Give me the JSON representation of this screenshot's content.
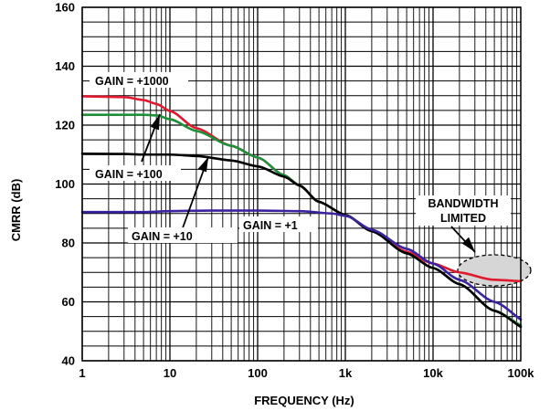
{
  "chart_data": {
    "type": "line",
    "xlabel": "FREQUENCY (Hz)",
    "ylabel": "CMRR (dB)",
    "xscale": "log",
    "xlim": [
      1,
      100000
    ],
    "ylim": [
      40,
      160
    ],
    "grid": true,
    "x_ticks": [
      {
        "value": 1,
        "label": "1"
      },
      {
        "value": 10,
        "label": "10"
      },
      {
        "value": 100,
        "label": "100"
      },
      {
        "value": 1000,
        "label": "1k"
      },
      {
        "value": 10000,
        "label": "10k"
      },
      {
        "value": 100000,
        "label": "100k"
      }
    ],
    "y_ticks": [
      {
        "value": 40,
        "label": "40"
      },
      {
        "value": 60,
        "label": "60"
      },
      {
        "value": 80,
        "label": "80"
      },
      {
        "value": 100,
        "label": "100"
      },
      {
        "value": 120,
        "label": "120"
      },
      {
        "value": 140,
        "label": "140"
      },
      {
        "value": 160,
        "label": "160"
      }
    ],
    "series": [
      {
        "color": "#e0192f",
        "points": [
          [
            1,
            129.8
          ],
          [
            3,
            129.5
          ],
          [
            5,
            128.5
          ],
          [
            7,
            127.2
          ],
          [
            10,
            124.8
          ],
          [
            20,
            119
          ],
          [
            50,
            113
          ],
          [
            100,
            109
          ],
          [
            200,
            103
          ],
          [
            300,
            99.5
          ],
          [
            500,
            94
          ],
          [
            1000,
            89.5
          ],
          [
            2000,
            84
          ],
          [
            5000,
            77
          ],
          [
            10000,
            73
          ],
          [
            20000,
            70
          ],
          [
            50000,
            67.5
          ],
          [
            100000,
            67
          ]
        ]
      },
      {
        "color": "#1f8f3a",
        "points": [
          [
            1,
            123.5
          ],
          [
            3,
            123.5
          ],
          [
            5,
            123.5
          ],
          [
            7,
            123.3
          ],
          [
            10,
            122
          ],
          [
            20,
            118
          ],
          [
            50,
            113
          ],
          [
            100,
            109
          ],
          [
            200,
            103
          ],
          [
            300,
            99.5
          ],
          [
            500,
            94
          ],
          [
            1000,
            89.5
          ],
          [
            2000,
            84
          ],
          [
            5000,
            76.5
          ],
          [
            10000,
            71.5
          ],
          [
            20000,
            66
          ],
          [
            50000,
            57
          ],
          [
            100000,
            52
          ]
        ]
      },
      {
        "color": "#000000",
        "points": [
          [
            1,
            110.3
          ],
          [
            3,
            110.2
          ],
          [
            5,
            110
          ],
          [
            10,
            110
          ],
          [
            20,
            109.5
          ],
          [
            50,
            108
          ],
          [
            100,
            106
          ],
          [
            200,
            102.5
          ],
          [
            300,
            99.5
          ],
          [
            500,
            94
          ],
          [
            1000,
            89.5
          ],
          [
            2000,
            84
          ],
          [
            5000,
            76.5
          ],
          [
            10000,
            71.5
          ],
          [
            20000,
            66
          ],
          [
            50000,
            57
          ],
          [
            100000,
            51.5
          ]
        ]
      },
      {
        "color": "#3b23a0",
        "points": [
          [
            1,
            90.5
          ],
          [
            5,
            90.5
          ],
          [
            10,
            90.8
          ],
          [
            30,
            91
          ],
          [
            100,
            91
          ],
          [
            300,
            90.8
          ],
          [
            700,
            90
          ],
          [
            1000,
            89.2
          ],
          [
            2000,
            84.5
          ],
          [
            5000,
            78
          ],
          [
            10000,
            73
          ],
          [
            20000,
            67.5
          ],
          [
            50000,
            60
          ],
          [
            100000,
            54
          ]
        ]
      }
    ],
    "annotations": [
      {
        "text": "GAIN = +1000"
      },
      {
        "text": "GAIN = +100"
      },
      {
        "text": "GAIN = +10"
      },
      {
        "text": "GAIN = +1"
      },
      {
        "text": "BANDWIDTH"
      },
      {
        "text": "LIMITED"
      }
    ]
  }
}
